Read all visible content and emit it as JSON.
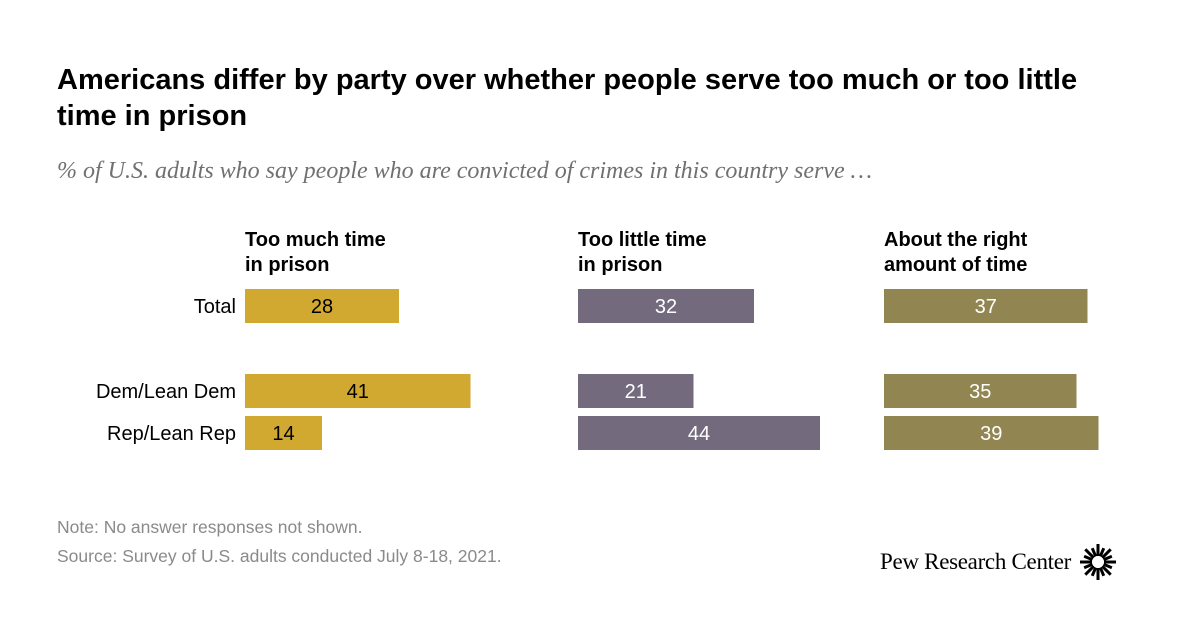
{
  "title": "Americans differ by party over whether people serve too much or too little time in prison",
  "subtitle": "% of U.S. adults who say people who are convicted of crimes in this country serve …",
  "note": "Note: No answer responses not shown.",
  "source": "Survey of U.S. adults conducted July 8-18, 2021.",
  "source_label": "Source: ",
  "logo": {
    "text": "Pew Research Center",
    "icon": "pew-sunburst-icon"
  },
  "colors": {
    "too_much": "#D1A931",
    "too_little": "#736A7E",
    "about_right": "#918651",
    "label_dark": "#000000",
    "label_light": "#ffffff"
  },
  "chart_data": {
    "type": "bar",
    "orientation": "horizontal",
    "categories": [
      "Total",
      "Dem/Lean Dem",
      "Rep/Lean Rep"
    ],
    "series": [
      {
        "name": "Too much time in prison",
        "values": [
          28,
          41,
          14
        ]
      },
      {
        "name": "Too little time in prison",
        "values": [
          32,
          21,
          44
        ]
      },
      {
        "name": "About the right amount of time",
        "values": [
          37,
          35,
          39
        ]
      }
    ],
    "series_header_lines": [
      [
        "Too much time",
        "in prison"
      ],
      [
        "Too little time",
        "in prison"
      ],
      [
        "About the right",
        "amount of time"
      ]
    ],
    "unit": "%",
    "layout": "small multiples, one panel per series",
    "grid": false,
    "legend": "column headers"
  }
}
